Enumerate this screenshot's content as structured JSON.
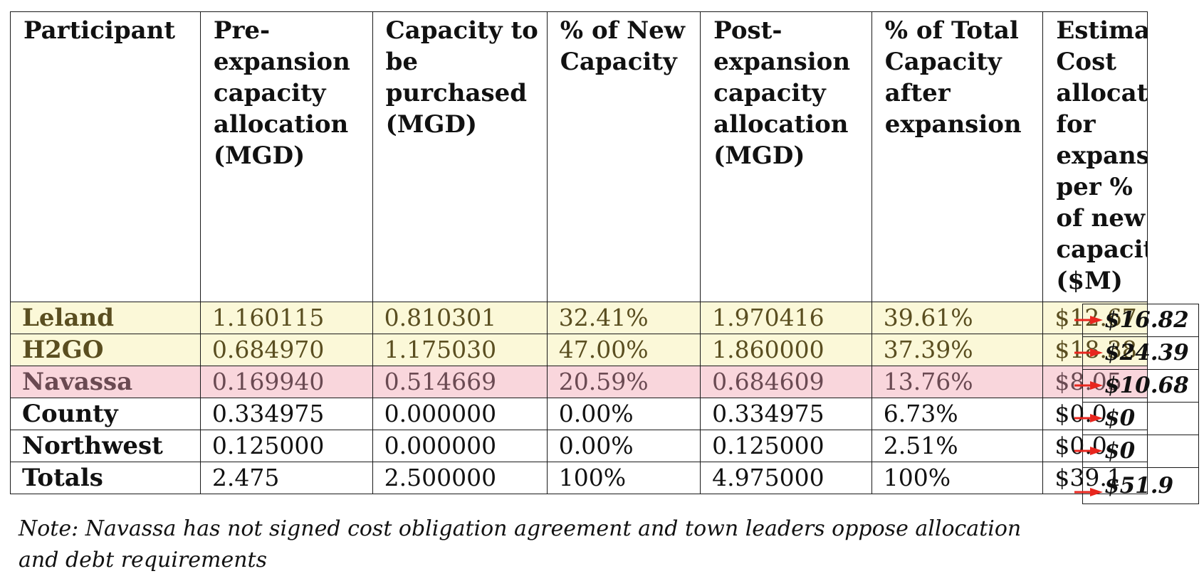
{
  "table": {
    "headers": [
      "Participant",
      "Pre-expansion capacity allocation (MGD)",
      "Capacity to be purchased (MGD)",
      "% of New Capacity",
      "Post-expansion capacity allocation (MGD)",
      "% of Total Capacity after expansion",
      "Estimated Cost allocation for expansion per % of new capacity ($M)"
    ],
    "rows": [
      {
        "participant": "Leland",
        "pre": "1.160115",
        "purchased": "0.810301",
        "pct_new": "32.41%",
        "post": "1.970416",
        "pct_total": "39.61%",
        "cost": "$12.67",
        "highlight": "yellow",
        "projected": "$16.82"
      },
      {
        "participant": "H2GO",
        "pre": "0.684970",
        "purchased": "1.175030",
        "pct_new": "47.00%",
        "post": "1.860000",
        "pct_total": "37.39%",
        "cost": "$18.38",
        "highlight": "yellow",
        "projected": "$24.39"
      },
      {
        "participant": "Navassa",
        "pre": "0.169940",
        "purchased": "0.514669",
        "pct_new": "20.59%",
        "post": "0.684609",
        "pct_total": "13.76%",
        "cost": "$8.05",
        "highlight": "pink",
        "projected": "$10.68"
      },
      {
        "participant": "County",
        "pre": "0.334975",
        "purchased": "0.000000",
        "pct_new": "0.00%",
        "post": "0.334975",
        "pct_total": "6.73%",
        "cost": "$0.0",
        "highlight": "none",
        "projected": "$0"
      },
      {
        "participant": "Northwest",
        "pre": "0.125000",
        "purchased": "0.000000",
        "pct_new": "0.00%",
        "post": "0.125000",
        "pct_total": "2.51%",
        "cost": "$0.0",
        "highlight": "none",
        "projected": "$0"
      },
      {
        "participant": "Totals",
        "pre": "2.475",
        "purchased": "2.500000",
        "pct_new": "100%",
        "post": "4.975000",
        "pct_total": "100%",
        "cost": "$39.1",
        "highlight": "none",
        "projected": "$51.9"
      }
    ]
  },
  "colors": {
    "highlight_yellow": "#fbf8d8",
    "highlight_pink": "#f9d6dc",
    "arrow": "#e8261e"
  },
  "icons": {
    "arrow": "red-arrow-icon"
  },
  "note": "Note: Navassa has not signed cost obligation agreement and town leaders oppose allocation and debt requirements"
}
